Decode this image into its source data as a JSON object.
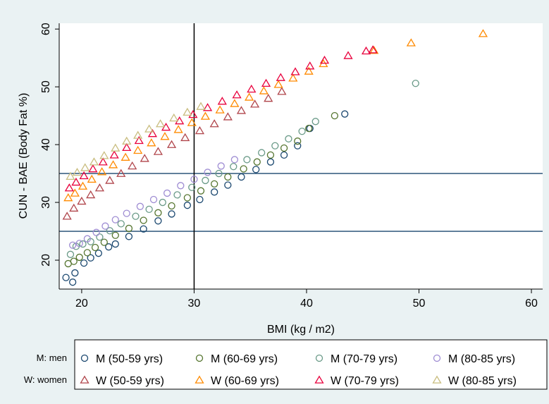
{
  "chart_data": {
    "type": "scatter",
    "title": "",
    "xlabel": "BMI (kg / m2)",
    "ylabel": "CUN - BAE (Body Fat %)",
    "xlim": [
      18,
      61
    ],
    "ylim": [
      15,
      61
    ],
    "xticks": [
      "20",
      "30",
      "40",
      "50",
      "60"
    ],
    "yticks": [
      "20",
      "30",
      "40",
      "50",
      "60"
    ],
    "grid": false,
    "reference_lines": {
      "vertical_x": [
        30
      ],
      "horizontal_y": [
        25,
        35
      ]
    },
    "colors": {
      "background": "#eaf2f3",
      "plot_area": "#ffffff",
      "ref_vertical": "#000000",
      "ref_horizontal": "#1a476f"
    },
    "legend": {
      "placement": "bottom",
      "group_labels": [
        "M: men",
        "W: women"
      ]
    },
    "series": [
      {
        "name": "M (50-59 yrs)",
        "marker": "circle",
        "color": "#1a476f",
        "x": [
          18.6,
          19.2,
          19.4,
          20.2,
          20.8,
          21.5,
          22.4,
          23.0,
          24.2,
          25.5,
          26.8,
          28.0,
          29.4,
          30.5,
          31.8,
          33.0,
          34.2,
          35.5,
          36.8,
          38.0,
          39.2,
          40.3,
          43.4
        ],
        "y": [
          17.0,
          16.2,
          17.8,
          19.5,
          20.4,
          21.2,
          22.3,
          22.8,
          24.1,
          25.4,
          26.8,
          28.0,
          29.5,
          30.5,
          31.8,
          33.0,
          34.4,
          35.7,
          37.0,
          38.2,
          39.8,
          42.8,
          45.3
        ]
      },
      {
        "name": "M (60-69 yrs)",
        "marker": "circle",
        "color": "#55752f",
        "x": [
          18.8,
          19.3,
          19.8,
          20.5,
          21.2,
          22.0,
          23.0,
          24.2,
          25.5,
          26.8,
          28.0,
          29.4,
          30.6,
          31.8,
          33.0,
          34.4,
          35.6,
          36.8,
          38.0,
          39.2,
          40.2,
          42.5
        ],
        "y": [
          19.4,
          19.8,
          20.5,
          21.3,
          22.2,
          23.1,
          24.3,
          25.5,
          26.9,
          28.2,
          29.4,
          30.8,
          32.0,
          33.2,
          34.4,
          35.8,
          37.0,
          38.2,
          39.4,
          40.6,
          42.8,
          45.0
        ]
      },
      {
        "name": "M (70-79 yrs)",
        "marker": "circle",
        "color": "#6a9a88",
        "x": [
          19.0,
          19.5,
          20.1,
          20.8,
          21.6,
          22.5,
          23.5,
          24.8,
          26.0,
          27.2,
          28.5,
          29.8,
          31.0,
          32.2,
          33.5,
          34.7,
          36.0,
          37.2,
          38.4,
          39.6,
          40.8,
          49.7
        ],
        "y": [
          21.0,
          22.4,
          22.8,
          23.2,
          24.0,
          25.1,
          26.3,
          27.6,
          28.8,
          30.0,
          31.3,
          32.6,
          33.8,
          35.0,
          36.2,
          37.4,
          38.6,
          39.8,
          41.0,
          42.3,
          44.0,
          50.6
        ]
      },
      {
        "name": "M (80-85 yrs)",
        "marker": "circle",
        "color": "#9f8dd3",
        "x": [
          19.2,
          19.8,
          20.5,
          21.3,
          22.1,
          23.0,
          24.0,
          25.2,
          26.4,
          27.6,
          28.8,
          30.0,
          31.2,
          32.4,
          33.6
        ],
        "y": [
          22.6,
          22.9,
          23.7,
          24.8,
          25.9,
          27.0,
          28.1,
          29.3,
          30.5,
          31.6,
          32.9,
          34.0,
          35.2,
          36.3,
          37.4
        ]
      },
      {
        "name": "W (50-59 yrs)",
        "marker": "triangle",
        "color": "#b0454b",
        "x": [
          18.7,
          19.3,
          20.0,
          20.8,
          21.6,
          22.5,
          23.5,
          24.5,
          25.6,
          26.8,
          28.0,
          29.2,
          30.5,
          31.8,
          33.0,
          34.2,
          35.4,
          36.6,
          37.8
        ],
        "y": [
          27.6,
          29.0,
          30.2,
          31.3,
          32.5,
          33.8,
          35.0,
          36.3,
          37.6,
          38.8,
          40.0,
          41.2,
          42.4,
          43.6,
          44.8,
          45.9,
          47.0,
          48.0,
          49.2
        ]
      },
      {
        "name": "W (60-69 yrs)",
        "marker": "triangle",
        "color": "#ff8a00",
        "x": [
          18.8,
          19.4,
          20.1,
          20.9,
          21.8,
          22.8,
          23.9,
          25.0,
          26.2,
          27.4,
          28.6,
          29.8,
          31.0,
          32.3,
          33.6,
          34.9,
          36.2,
          37.5,
          38.8,
          40.2,
          41.5,
          46.0,
          49.3,
          55.7
        ],
        "y": [
          30.8,
          31.6,
          32.8,
          34.0,
          35.3,
          36.5,
          37.8,
          39.0,
          40.3,
          41.4,
          42.6,
          43.8,
          44.9,
          46.0,
          47.1,
          48.2,
          49.3,
          50.4,
          51.5,
          52.7,
          54.0,
          56.3,
          57.6,
          59.2
        ]
      },
      {
        "name": "W (70-79 yrs)",
        "marker": "triangle",
        "color": "#e8003c",
        "x": [
          18.9,
          19.5,
          20.2,
          21.0,
          21.9,
          22.9,
          24.0,
          25.1,
          26.3,
          27.5,
          28.7,
          29.9,
          31.2,
          32.5,
          33.8,
          35.1,
          36.4,
          37.7,
          39.0,
          40.3,
          41.6,
          43.7,
          45.3,
          45.9
        ],
        "y": [
          32.5,
          33.5,
          34.6,
          35.8,
          37.0,
          38.2,
          39.5,
          40.7,
          41.9,
          43.0,
          44.1,
          45.2,
          46.4,
          47.5,
          48.6,
          49.6,
          50.6,
          51.6,
          52.6,
          53.6,
          54.6,
          55.4,
          56.2,
          56.4
        ]
      },
      {
        "name": "W (80-85 yrs)",
        "marker": "triangle",
        "color": "#c9bd7f",
        "x": [
          19.0,
          19.6,
          20.3,
          21.1,
          22.0,
          23.0,
          24.0,
          25.0,
          26.0,
          27.0,
          28.2,
          29.4,
          30.6
        ],
        "y": [
          34.5,
          35.2,
          36.0,
          37.0,
          38.1,
          39.4,
          40.6,
          41.6,
          42.7,
          43.6,
          44.6,
          45.6,
          46.6
        ]
      }
    ]
  }
}
